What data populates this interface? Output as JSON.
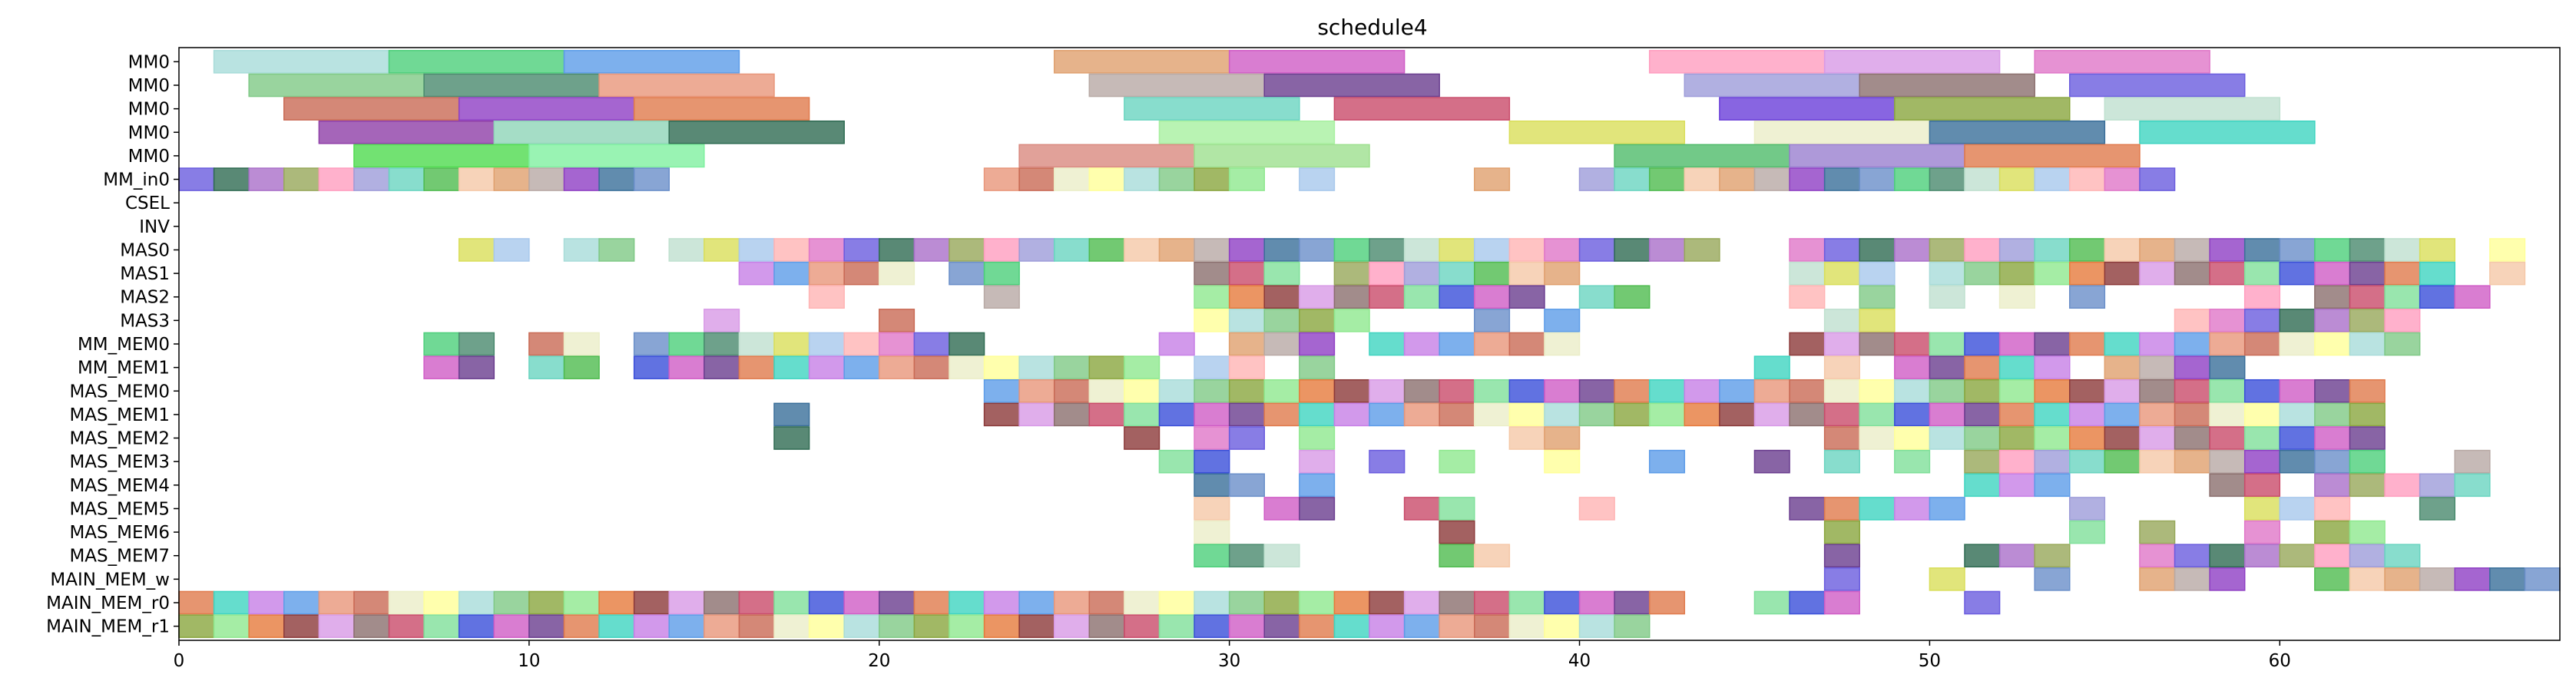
{
  "chart_data": {
    "type": "gantt",
    "title": "schedule4",
    "xlabel": "",
    "ylabel": "",
    "xlim": [
      0,
      68
    ],
    "x_ticks": [
      0,
      10,
      20,
      30,
      40,
      50,
      60
    ],
    "grid": false,
    "legend": "none",
    "rows": [
      "MM0",
      "MM0",
      "MM0",
      "MM0",
      "MM0",
      "MM_in0",
      "CSEL",
      "INV",
      "MAS0",
      "MAS1",
      "MAS2",
      "MAS3",
      "MM_MEM0",
      "MM_MEM1",
      "MAS_MEM0",
      "MAS_MEM1",
      "MAS_MEM2",
      "MAS_MEM3",
      "MAS_MEM4",
      "MAS_MEM5",
      "MAS_MEM6",
      "MAS_MEM7",
      "MAIN_MEM_w",
      "MAIN_MEM_r0",
      "MAIN_MEM_r1"
    ],
    "palette": [
      "#a8dcd9",
      "#4ccf7a",
      "#5c9ce8",
      "#e0a06e",
      "#d05cc6",
      "#ff9dbf",
      "#d89ae6",
      "#e077c8",
      "#7fc986",
      "#4a8a6e",
      "#e8967a",
      "#b8a9a5",
      "#6a3d8f",
      "#9e9cd9",
      "#8b6f6e",
      "#6a5cde",
      "#8aa63e",
      "#bfe0cf",
      "#c96a55",
      "#8f3fc4",
      "#e07a4c",
      "#6ad4c0",
      "#c94b6a",
      "#2f6b52",
      "#8fe88f",
      "#d9de5a",
      "#ebeec8",
      "#3a6f9a",
      "#3fd4c0",
      "#4fbb4f",
      "#7fe09a",
      "#aa6fc9",
      "#e67a3c",
      "#a8c8ec",
      "#ffff99",
      "#6a8fc9",
      "#c77fe6",
      "#f5c8a8",
      "#3a4fd9",
      "#97a85a",
      "#8c3a3a",
      "#ffb4b4"
    ],
    "tasks": [
      {
        "row": 0,
        "start": 1,
        "end": 6,
        "color": "#a8dcd9"
      },
      {
        "row": 0,
        "start": 6,
        "end": 11,
        "color": "#4ccf7a"
      },
      {
        "row": 0,
        "start": 11,
        "end": 16,
        "color": "#5c9ce8"
      },
      {
        "row": 0,
        "start": 25,
        "end": 30,
        "color": "#e0a06e"
      },
      {
        "row": 0,
        "start": 30,
        "end": 35,
        "color": "#d05cc6"
      },
      {
        "row": 0,
        "start": 42,
        "end": 47,
        "color": "#ff9dbf"
      },
      {
        "row": 0,
        "start": 47,
        "end": 52,
        "color": "#d89ae6"
      },
      {
        "row": 0,
        "start": 53,
        "end": 58,
        "color": "#e077c8"
      },
      {
        "row": 1,
        "start": 2,
        "end": 7,
        "color": "#7fc986"
      },
      {
        "row": 1,
        "start": 7,
        "end": 12,
        "color": "#4a8a6e"
      },
      {
        "row": 1,
        "start": 12,
        "end": 17,
        "color": "#e8967a"
      },
      {
        "row": 1,
        "start": 26,
        "end": 31,
        "color": "#b8a9a5"
      },
      {
        "row": 1,
        "start": 31,
        "end": 36,
        "color": "#6a3d8f"
      },
      {
        "row": 1,
        "start": 43,
        "end": 48,
        "color": "#9e9cd9"
      },
      {
        "row": 1,
        "start": 48,
        "end": 53,
        "color": "#8b6f6e"
      },
      {
        "row": 1,
        "start": 54,
        "end": 59,
        "color": "#6a5cde"
      },
      {
        "row": 2,
        "start": 3,
        "end": 8,
        "color": "#c96a55"
      },
      {
        "row": 2,
        "start": 8,
        "end": 13,
        "color": "#8f3fc4"
      },
      {
        "row": 2,
        "start": 13,
        "end": 18,
        "color": "#e07a4c"
      },
      {
        "row": 2,
        "start": 27,
        "end": 32,
        "color": "#6ad4c0"
      },
      {
        "row": 2,
        "start": 33,
        "end": 38,
        "color": "#c94b6a"
      },
      {
        "row": 2,
        "start": 44,
        "end": 49,
        "color": "#6a3fd9"
      },
      {
        "row": 2,
        "start": 49,
        "end": 54,
        "color": "#8aa63e"
      },
      {
        "row": 2,
        "start": 55,
        "end": 60,
        "color": "#bfe0cf"
      },
      {
        "row": 3,
        "start": 4,
        "end": 9,
        "color": "#8f3fa8"
      },
      {
        "row": 3,
        "start": 9,
        "end": 14,
        "color": "#8fd4b8"
      },
      {
        "row": 3,
        "start": 14,
        "end": 19,
        "color": "#2f6b52"
      },
      {
        "row": 3,
        "start": 28,
        "end": 33,
        "color": "#a8f0a0"
      },
      {
        "row": 3,
        "start": 38,
        "end": 43,
        "color": "#d9de5a"
      },
      {
        "row": 3,
        "start": 45,
        "end": 50,
        "color": "#ebeec8"
      },
      {
        "row": 3,
        "start": 50,
        "end": 55,
        "color": "#3a6f9a"
      },
      {
        "row": 3,
        "start": 56,
        "end": 61,
        "color": "#3fd4c0"
      },
      {
        "row": 4,
        "start": 5,
        "end": 10,
        "color": "#4fdb4f"
      },
      {
        "row": 4,
        "start": 10,
        "end": 15,
        "color": "#7ff0a0"
      },
      {
        "row": 4,
        "start": 24,
        "end": 29,
        "color": "#d98a80"
      },
      {
        "row": 4,
        "start": 29,
        "end": 34,
        "color": "#9ee08f"
      },
      {
        "row": 4,
        "start": 41,
        "end": 46,
        "color": "#4fbb6a"
      },
      {
        "row": 4,
        "start": 46,
        "end": 51,
        "color": "#9a7fd0"
      },
      {
        "row": 4,
        "start": 51,
        "end": 56,
        "color": "#e07a4c"
      }
    ],
    "cells": [
      {
        "row": 5,
        "x": [
          0,
          1,
          2,
          3,
          4,
          5,
          6,
          7,
          8,
          9,
          10,
          11,
          12,
          13,
          23,
          24,
          25,
          26,
          27,
          28,
          29,
          30,
          32,
          37,
          40,
          41,
          42,
          43,
          44,
          45,
          46,
          47,
          48,
          49,
          50,
          51,
          52,
          53,
          54,
          55,
          56
        ]
      },
      {
        "row": 8,
        "x": [
          8,
          9,
          11,
          12,
          14,
          15,
          16,
          17,
          18,
          19,
          20,
          21,
          22,
          23,
          24,
          25,
          26,
          27,
          28,
          29,
          30,
          31,
          32,
          33,
          34,
          35,
          36,
          37,
          38,
          39,
          40,
          41,
          42,
          43,
          46,
          47,
          48,
          49,
          50,
          51,
          52,
          53,
          54,
          55,
          56,
          57,
          58,
          59,
          60,
          61,
          62,
          63,
          64,
          66
        ]
      },
      {
        "row": 9,
        "x": [
          16,
          17,
          18,
          19,
          20,
          22,
          23,
          29,
          30,
          31,
          33,
          34,
          35,
          36,
          37,
          38,
          39,
          46,
          47,
          48,
          50,
          51,
          52,
          53,
          54,
          55,
          56,
          57,
          58,
          59,
          60,
          61,
          62,
          63,
          64,
          66
        ]
      },
      {
        "row": 10,
        "x": [
          18,
          23,
          29,
          30,
          31,
          32,
          33,
          34,
          35,
          36,
          37,
          38,
          40,
          41,
          46,
          48,
          50,
          52,
          54,
          59,
          61,
          62,
          63,
          64,
          65
        ]
      },
      {
        "row": 11,
        "x": [
          15,
          20,
          29,
          30,
          31,
          32,
          33,
          37,
          39,
          47,
          48,
          57,
          58,
          59,
          60,
          61,
          62,
          63
        ]
      },
      {
        "row": 12,
        "x": [
          7,
          8,
          10,
          11,
          13,
          14,
          15,
          16,
          17,
          18,
          19,
          20,
          21,
          22,
          28,
          30,
          31,
          32,
          34,
          35,
          36,
          37,
          38,
          39,
          46,
          47,
          48,
          49,
          50,
          51,
          52,
          53,
          54,
          55,
          56,
          57,
          58,
          59,
          60,
          61,
          62,
          63
        ]
      },
      {
        "row": 13,
        "x": [
          7,
          8,
          10,
          11,
          13,
          14,
          15,
          16,
          17,
          18,
          19,
          20,
          21,
          22,
          23,
          24,
          25,
          26,
          27,
          29,
          30,
          32,
          45,
          47,
          49,
          50,
          51,
          52,
          53,
          55,
          56,
          57,
          58
        ]
      },
      {
        "row": 14,
        "x": [
          23,
          24,
          25,
          26,
          27,
          28,
          29,
          30,
          31,
          32,
          33,
          34,
          35,
          36,
          37,
          38,
          39,
          40,
          41,
          42,
          43,
          44,
          45,
          46,
          47,
          48,
          49,
          50,
          51,
          52,
          53,
          54,
          55,
          56,
          57,
          58,
          59,
          60,
          61,
          62
        ]
      },
      {
        "row": 15,
        "x": [
          17,
          23,
          24,
          25,
          26,
          27,
          28,
          29,
          30,
          31,
          32,
          33,
          34,
          35,
          36,
          37,
          38,
          39,
          40,
          41,
          42,
          43,
          44,
          45,
          46,
          47,
          48,
          49,
          50,
          51,
          52,
          53,
          54,
          55,
          56,
          57,
          58,
          59,
          60,
          61,
          62
        ]
      },
      {
        "row": 16,
        "x": [
          17,
          27,
          29,
          30,
          32,
          38,
          39,
          47,
          48,
          49,
          50,
          51,
          52,
          53,
          54,
          55,
          56,
          57,
          58,
          59,
          60,
          61,
          62
        ]
      },
      {
        "row": 17,
        "x": [
          28,
          29,
          32,
          34,
          36,
          39,
          42,
          45,
          47,
          49,
          51,
          52,
          53,
          54,
          55,
          56,
          57,
          58,
          59,
          60,
          61,
          62,
          65
        ]
      },
      {
        "row": 18,
        "x": [
          29,
          30,
          32,
          51,
          52,
          53,
          58,
          59,
          61,
          62,
          63,
          64,
          65
        ]
      },
      {
        "row": 19,
        "x": [
          29,
          31,
          32,
          35,
          36,
          40,
          46,
          47,
          48,
          49,
          50,
          54,
          59,
          60,
          61,
          64
        ]
      },
      {
        "row": 20,
        "x": [
          29,
          36,
          47,
          54,
          56,
          59,
          61,
          62
        ]
      },
      {
        "row": 21,
        "x": [
          29,
          30,
          31,
          36,
          37,
          47,
          51,
          52,
          53,
          56,
          57,
          58,
          59,
          60,
          61,
          62,
          63
        ]
      },
      {
        "row": 22,
        "x": [
          47,
          50,
          53,
          56,
          57,
          58,
          61,
          62,
          63,
          64,
          65,
          66,
          67
        ]
      },
      {
        "row": 23,
        "x": [
          0,
          1,
          2,
          3,
          4,
          5,
          6,
          7,
          8,
          9,
          10,
          11,
          12,
          13,
          14,
          15,
          16,
          17,
          18,
          19,
          20,
          21,
          22,
          23,
          24,
          25,
          26,
          27,
          28,
          29,
          30,
          31,
          32,
          33,
          34,
          35,
          36,
          37,
          38,
          39,
          40,
          41,
          42,
          45,
          46,
          47,
          51
        ]
      },
      {
        "row": 24,
        "x": [
          0,
          1,
          2,
          3,
          4,
          5,
          6,
          7,
          8,
          9,
          10,
          11,
          12,
          13,
          14,
          15,
          16,
          17,
          18,
          19,
          20,
          21,
          22,
          23,
          24,
          25,
          26,
          27,
          28,
          29,
          30,
          31,
          32,
          33,
          34,
          35,
          36,
          37,
          38,
          39,
          40,
          41
        ]
      }
    ]
  }
}
